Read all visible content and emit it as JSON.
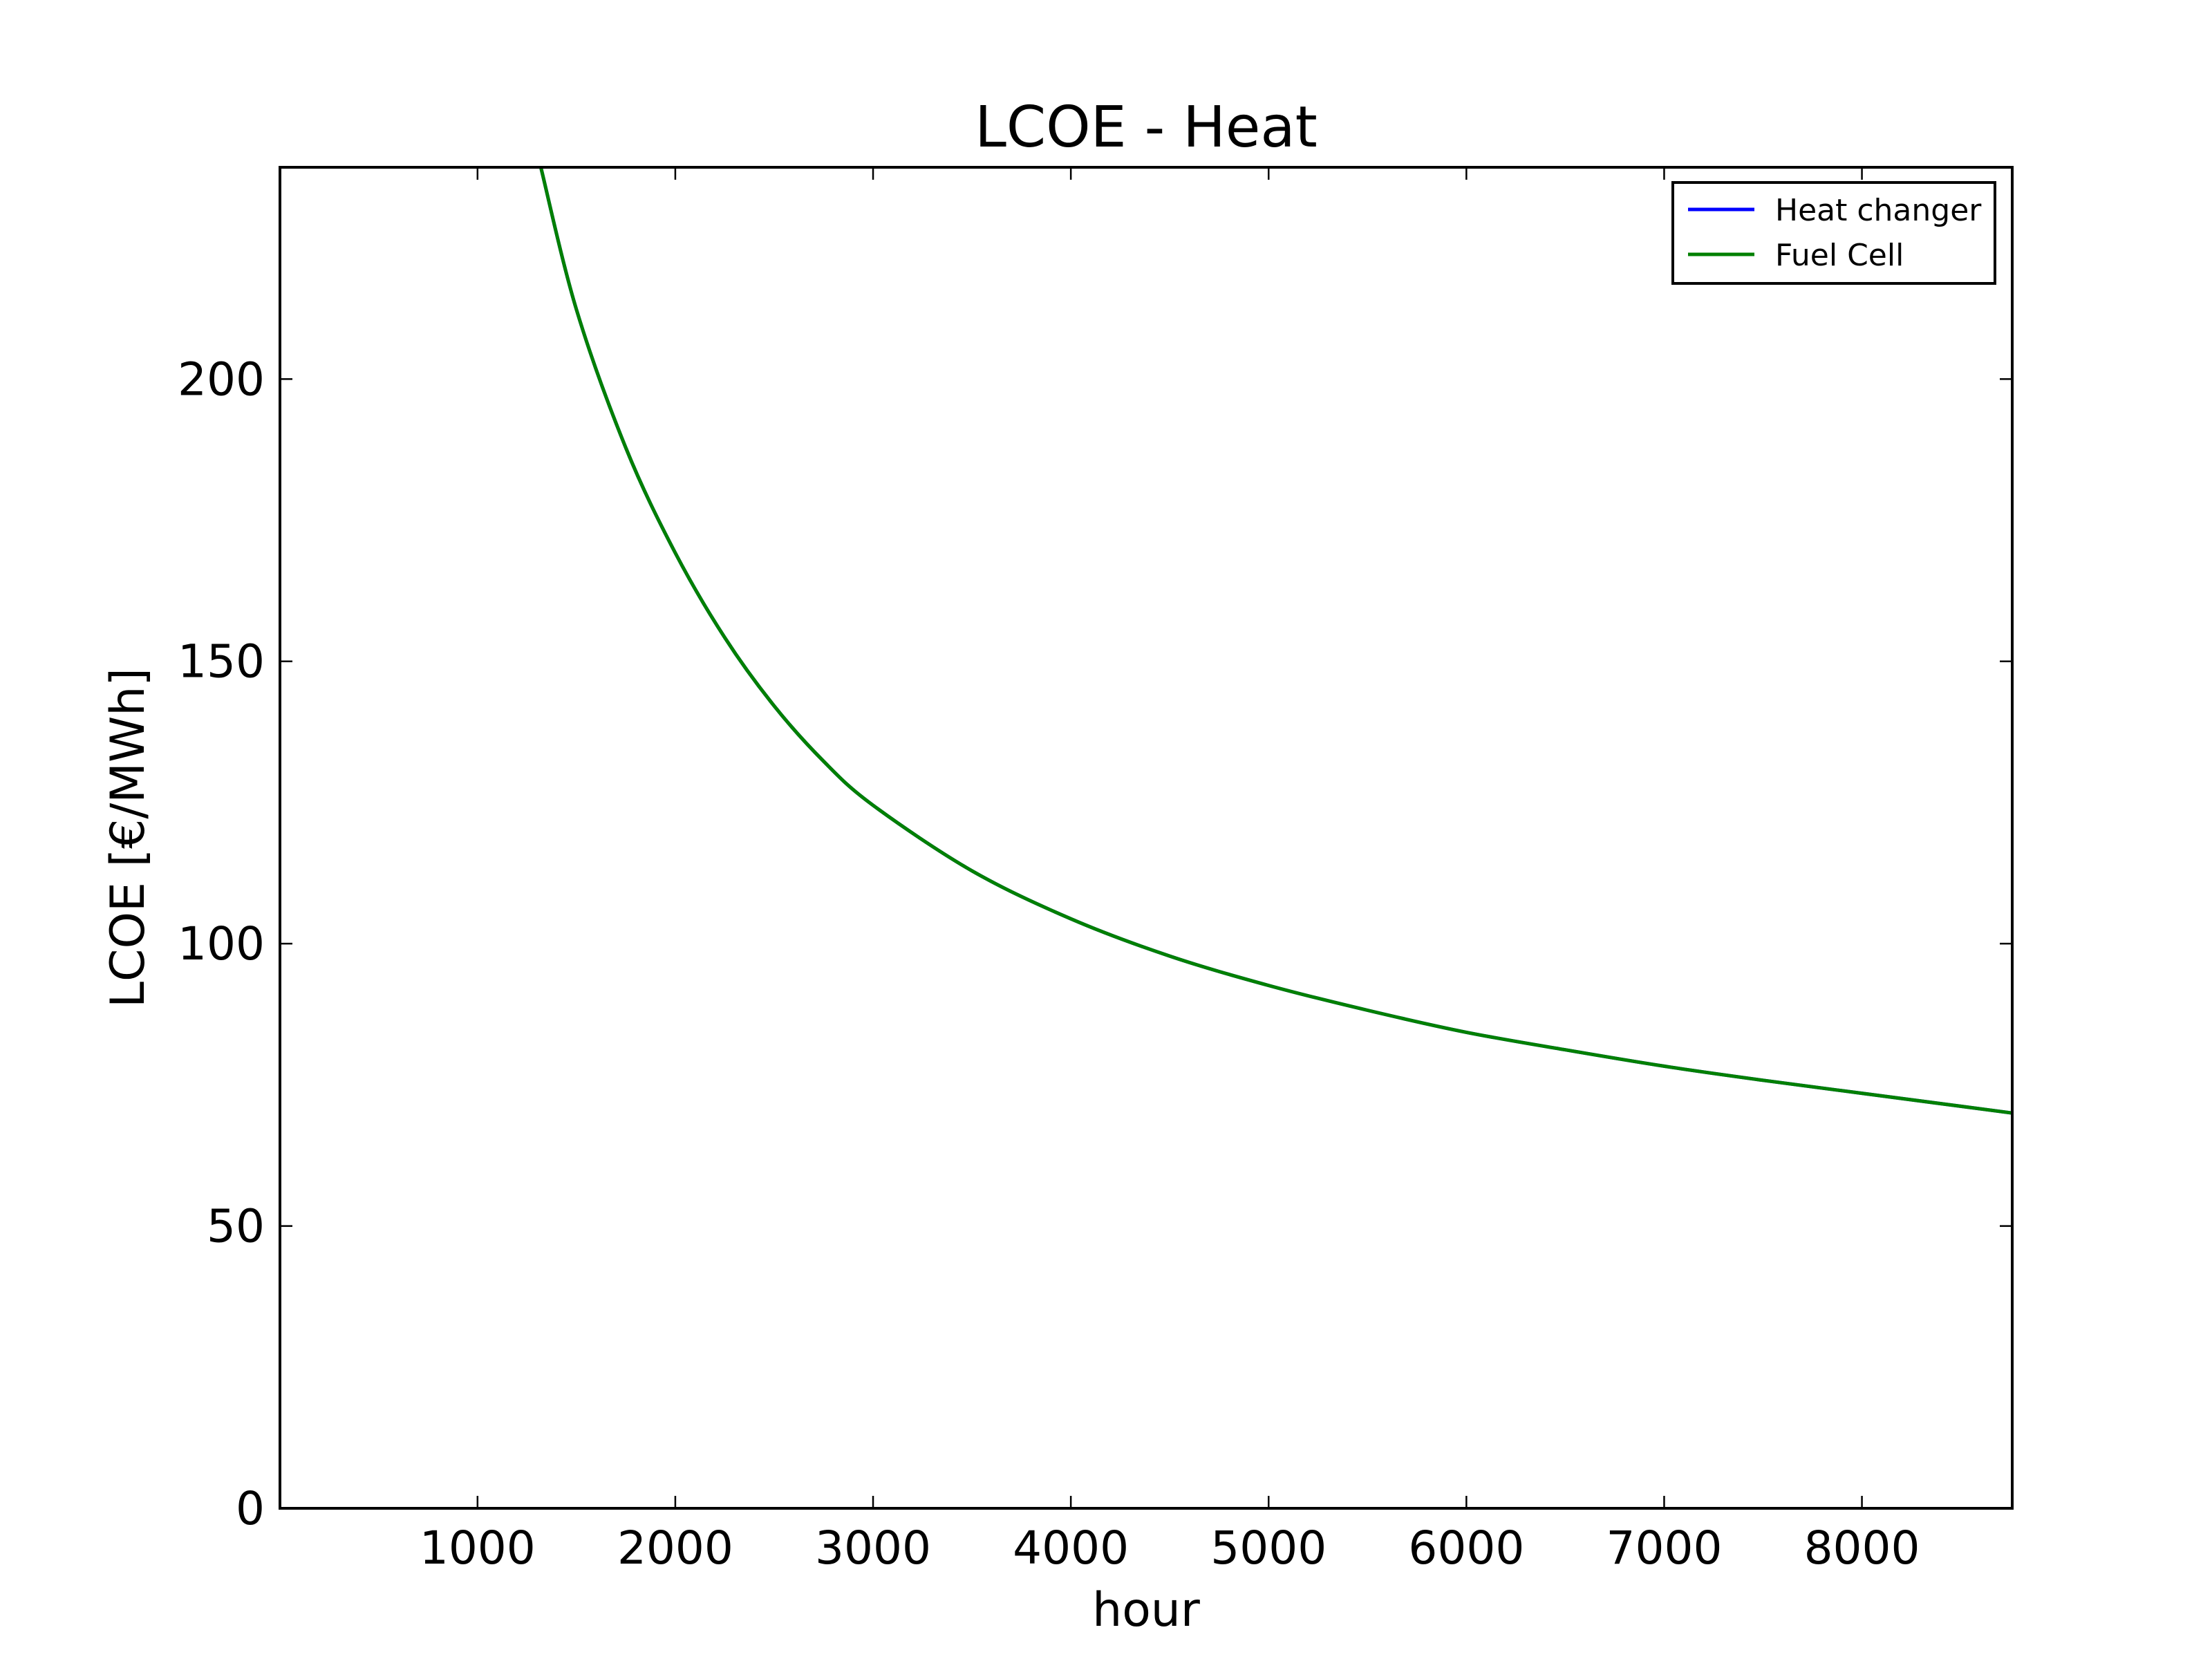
{
  "chart_data": {
    "type": "line",
    "title": "LCOE - Heat",
    "xlabel": "hour",
    "ylabel": "LCOE [€/MWh]",
    "xlim": [
      1,
      8760
    ],
    "ylim": [
      0,
      237.5
    ],
    "xticks": [
      1000,
      2000,
      3000,
      4000,
      5000,
      6000,
      7000,
      8000
    ],
    "yticks": [
      0,
      50,
      100,
      150,
      200
    ],
    "grid": false,
    "legend": "top-right",
    "series": [
      {
        "name": "Heat changer",
        "color": "#0000ff",
        "x": [
          1320,
          1500,
          1750,
          2000,
          2250,
          2500,
          2750,
          3000,
          3500,
          4000,
          4500,
          5000,
          5500,
          6000,
          6500,
          7000,
          7500,
          8000,
          8500,
          8760
        ],
        "y": [
          237.5,
          212.3,
          187.8,
          169.2,
          154.2,
          142.1,
          132.3,
          124.5,
          112.9,
          104.4,
          97.8,
          92.6,
          88.2,
          84.3,
          81.2,
          78.3,
          75.8,
          73.5,
          71.2,
          70.0
        ]
      },
      {
        "name": "Fuel Cell",
        "color": "#008000",
        "x": [
          1320,
          1500,
          1750,
          2000,
          2250,
          2500,
          2750,
          3000,
          3500,
          4000,
          4500,
          5000,
          5500,
          6000,
          6500,
          7000,
          7500,
          8000,
          8500,
          8760
        ],
        "y": [
          237.5,
          212.3,
          187.8,
          169.2,
          154.2,
          142.1,
          132.3,
          124.5,
          112.9,
          104.4,
          97.8,
          92.6,
          88.2,
          84.3,
          81.2,
          78.3,
          75.8,
          73.5,
          71.2,
          70.0
        ]
      }
    ]
  }
}
